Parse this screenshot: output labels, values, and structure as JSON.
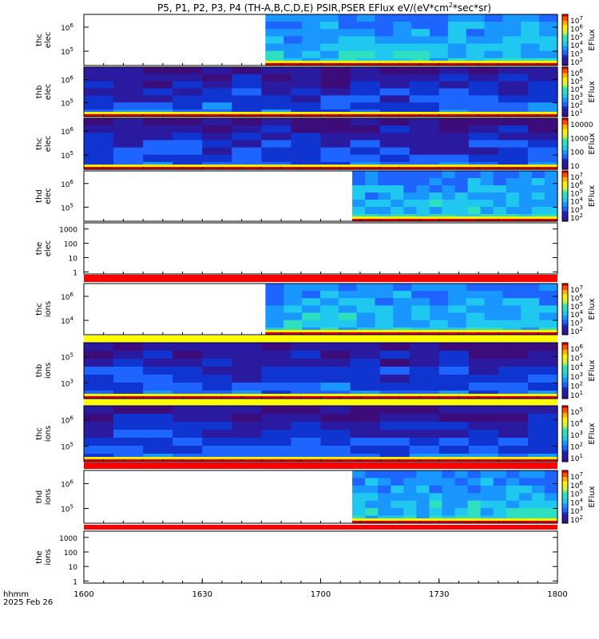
{
  "title": "P5, P1, P2, P3, P4 (TH-A,B,C,D,E) PSIR,PSER EFlux eV/(eV*cm",
  "title_sup": "2",
  "title_tail": "*sec*sr)",
  "colorbar_label": "EFlux",
  "xaxis": {
    "label_line1": "hhmm",
    "label_line2": "2025 Feb 26",
    "ticks": [
      "1600",
      "1630",
      "1700",
      "1730",
      "1800"
    ],
    "range": [
      960,
      1080
    ]
  },
  "colors": {
    "fill_red": "#ff0000",
    "fill_yellow": "#ffff00",
    "spectrogram_dark": "#3a0a7a",
    "spectrogram_blue": "#1e64ff"
  },
  "chart_data": [
    {
      "type": "heatmap",
      "ylabel": [
        "thc",
        "elec"
      ],
      "ytick_labels": [
        "10",
        "10"
      ],
      "ytick_exp": [
        "6",
        "5"
      ],
      "data_start": 1006,
      "cbar_labels": [
        [
          "10",
          "7"
        ],
        [
          "10",
          "6"
        ],
        [
          "10",
          "5"
        ],
        [
          "10",
          "4"
        ],
        [
          "10",
          "3"
        ],
        [
          "10",
          "2"
        ]
      ]
    },
    {
      "type": "heatmap",
      "ylabel": [
        "thb",
        "elec"
      ],
      "ytick_labels": [
        "10",
        "10"
      ],
      "ytick_exp": [
        "6",
        "5"
      ],
      "data_start": 960,
      "cbar_labels": [
        [
          "10",
          "6"
        ],
        [
          "10",
          "5"
        ],
        [
          "10",
          "4"
        ],
        [
          "10",
          "3"
        ],
        [
          "10",
          "2"
        ],
        [
          "10",
          "1"
        ]
      ]
    },
    {
      "type": "heatmap",
      "ylabel": [
        "thc",
        "elec"
      ],
      "ytick_labels": [
        "10",
        "10"
      ],
      "ytick_exp": [
        "6",
        "5"
      ],
      "data_start": 960,
      "cbar_labels": [
        [
          "10000",
          ""
        ],
        [
          "1000",
          ""
        ],
        [
          "100",
          ""
        ],
        [
          "10",
          ""
        ]
      ]
    },
    {
      "type": "heatmap",
      "ylabel": [
        "thd",
        "elec"
      ],
      "ytick_labels": [
        "10",
        "10"
      ],
      "ytick_exp": [
        "6",
        "5"
      ],
      "data_start": 1028,
      "cbar_labels": [
        [
          "10",
          "7"
        ],
        [
          "10",
          "6"
        ],
        [
          "10",
          "5"
        ],
        [
          "10",
          "4"
        ],
        [
          "10",
          "3"
        ],
        [
          "10",
          "2"
        ]
      ]
    },
    {
      "type": "heatmap",
      "ylabel": [
        "the",
        "elec"
      ],
      "ytick_labels": [
        "1000",
        "100",
        "10",
        "1"
      ],
      "ytick_exp": [
        "",
        "",
        "",
        ""
      ],
      "data_start": null,
      "cbar_labels": []
    },
    {
      "type": "heatmap",
      "ylabel": [
        "thc",
        "ions"
      ],
      "ytick_labels": [
        "10",
        "10"
      ],
      "ytick_exp": [
        "6",
        "4"
      ],
      "data_start": 1006,
      "cbar_labels": [
        [
          "10",
          "7"
        ],
        [
          "10",
          "6"
        ],
        [
          "10",
          "5"
        ],
        [
          "10",
          "4"
        ],
        [
          "10",
          "3"
        ],
        [
          "10",
          "2"
        ]
      ]
    },
    {
      "type": "heatmap",
      "ylabel": [
        "thb",
        "ions"
      ],
      "ytick_labels": [
        "10",
        "10"
      ],
      "ytick_exp": [
        "5",
        "3"
      ],
      "data_start": 960,
      "cbar_labels": [
        [
          "10",
          "6"
        ],
        [
          "10",
          "5"
        ],
        [
          "10",
          "4"
        ],
        [
          "10",
          "3"
        ],
        [
          "10",
          "2"
        ],
        [
          "10",
          "1"
        ]
      ]
    },
    {
      "type": "heatmap",
      "ylabel": [
        "thc",
        "ions"
      ],
      "ytick_labels": [
        "10",
        "10"
      ],
      "ytick_exp": [
        "6",
        "5"
      ],
      "data_start": 960,
      "cbar_labels": [
        [
          "10",
          "5"
        ],
        [
          "10",
          "4"
        ],
        [
          "10",
          "3"
        ],
        [
          "10",
          "2"
        ],
        [
          "10",
          "1"
        ]
      ]
    },
    {
      "type": "heatmap",
      "ylabel": [
        "thd",
        "ions"
      ],
      "ytick_labels": [
        "10",
        "10"
      ],
      "ytick_exp": [
        "6",
        "5"
      ],
      "data_start": 1028,
      "cbar_labels": [
        [
          "10",
          "7"
        ],
        [
          "10",
          "6"
        ],
        [
          "10",
          "5"
        ],
        [
          "10",
          "4"
        ],
        [
          "10",
          "3"
        ],
        [
          "10",
          "2"
        ]
      ]
    },
    {
      "type": "heatmap",
      "ylabel": [
        "the",
        "ions"
      ],
      "ytick_labels": [
        "1000",
        "100",
        "10",
        "1"
      ],
      "ytick_exp": [
        "",
        "",
        "",
        ""
      ],
      "data_start": null,
      "cbar_labels": []
    }
  ]
}
